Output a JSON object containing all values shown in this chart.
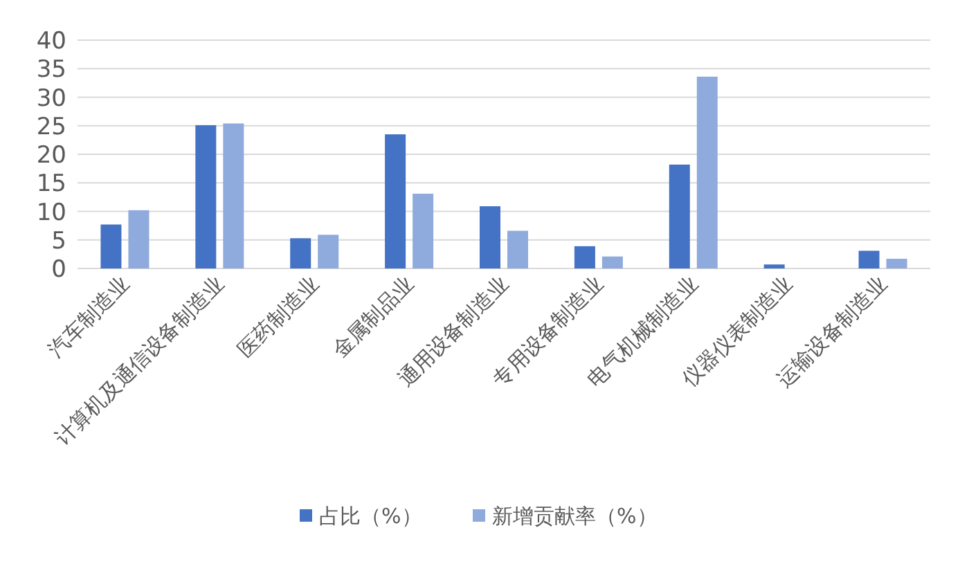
{
  "chart_data": {
    "type": "bar",
    "categories": [
      "汽车制造业",
      "计算机及通信设备制造业",
      "医药制造业",
      "金属制品业",
      "通用设备制造业",
      "专用设备制造业",
      "电气机械制造业",
      "仪器仪表制造业",
      "运输设备制造业"
    ],
    "series": [
      {
        "name": "占比（%）",
        "color": "#4472c4",
        "values": [
          7.7,
          25.1,
          5.3,
          23.5,
          10.9,
          3.9,
          18.2,
          0.7,
          3.1
        ]
      },
      {
        "name": "新增贡献率（%）",
        "color": "#8faadc",
        "values": [
          10.2,
          25.4,
          5.9,
          13.1,
          6.6,
          2.1,
          33.6,
          0,
          1.7
        ]
      }
    ],
    "ylim": [
      0,
      40
    ],
    "yticks": [
      0,
      5,
      10,
      15,
      20,
      25,
      30,
      35,
      40
    ],
    "grid": "y",
    "legend": "bottom"
  }
}
